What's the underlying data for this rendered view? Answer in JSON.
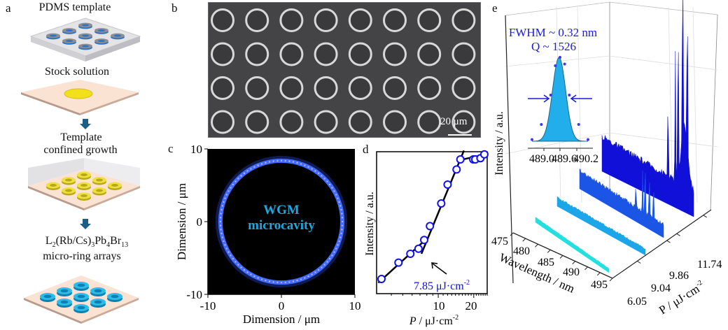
{
  "panel_a": {
    "letter": "a",
    "steps": [
      {
        "label": "PDMS template"
      },
      {
        "label": "Stock solution"
      },
      {
        "label_line1": "Template",
        "label_line2": "confined growth"
      },
      {
        "label_formula_parts": [
          "L",
          "2",
          "(Rb/Cs)",
          "3",
          "Pb",
          "4",
          "Br",
          "13"
        ],
        "label_line2": "micro-ring arrays"
      }
    ],
    "colors": {
      "pdms": "#d9d9dc",
      "substrate": "#f8d9c8",
      "solution": "#f2e01b",
      "growth_ring": "#e8d83a",
      "final_ring": "#1fb6e0",
      "arrow": "#1b5f86"
    }
  },
  "panel_b": {
    "letter": "b",
    "rows": 4,
    "cols": 8,
    "scale_bar": "20 μm"
  },
  "panel_c": {
    "letter": "c",
    "overlay_line1": "WGM",
    "overlay_line2": "microcavity",
    "xlabel": "Dimension / μm",
    "ylabel": "Dimension / μm",
    "xticks": [
      "-10",
      "0",
      "10"
    ],
    "yticks": [
      "10",
      "0",
      "-10"
    ],
    "xlim": [
      -10,
      10
    ],
    "ylim": [
      -10,
      10
    ],
    "ring_radius": 8.3,
    "colors": {
      "ring": "#3f6dff",
      "text": "#19a9e0"
    }
  },
  "panel_d": {
    "letter": "d",
    "xlabel_italic": "P",
    "xlabel_rest": " / μJ·cm",
    "xlabel_sup": "-2",
    "ylabel": "Intensity / a.u.",
    "xticks": [
      "10",
      "20"
    ],
    "annotation": "7.85 μJ·cm",
    "annotation_sup": "-2",
    "threshold": 7.85
  },
  "panel_e": {
    "letter": "e",
    "ylabel": "Intensity / a.u.",
    "xlabel": "Wavelength / nm",
    "zlabel": "P / μJ·cm",
    "zlabel_sup": "-2",
    "wavelength_ticks": [
      "475",
      "480",
      "485",
      "490",
      "495"
    ],
    "power_ticks": [
      "6.05",
      "9.04",
      "9.86",
      "11.74"
    ],
    "inset": {
      "fwhm_text": "FWHM ~ 0.32 nm",
      "q_text": "Q ~ 1526",
      "xticks": [
        "489.0",
        "489.6",
        "490.2"
      ]
    }
  },
  "chart_data": [
    {
      "type": "scatter",
      "title": "d",
      "xlabel": "P / μJ·cm-2",
      "ylabel": "Intensity / a.u.",
      "xscale": "log",
      "xlim": [
        3,
        26
      ],
      "x": [
        3.3,
        4.6,
        5.8,
        6.8,
        7.6,
        8.5,
        10.6,
        12.0,
        14.3,
        15.4,
        19.8,
        20.6,
        22.8,
        24.6
      ],
      "y": [
        0.05,
        0.18,
        0.25,
        0.29,
        0.36,
        0.47,
        0.65,
        0.8,
        0.92,
        1.0,
        1.0,
        1.0,
        1.01,
        1.04
      ],
      "threshold_annotation": "7.85 μJ·cm-2"
    },
    {
      "type": "area",
      "title": "e inset",
      "x": [
        489.0,
        489.2,
        489.4,
        489.5,
        489.6,
        489.7,
        489.8,
        490.0,
        490.2
      ],
      "y": [
        0.02,
        0.2,
        0.55,
        0.9,
        1.0,
        0.92,
        0.55,
        0.2,
        0.02
      ],
      "xticks": [
        "489.0",
        "489.6",
        "490.2"
      ],
      "annotation": [
        "FWHM ~ 0.32 nm",
        "Q ~ 1526"
      ]
    },
    {
      "type": "line",
      "title": "e",
      "xlabel": "Wavelength / nm",
      "ylabel": "Intensity / a.u.",
      "zlabel": "P / μJ·cm-2",
      "xlim": [
        475,
        495
      ],
      "series": [
        {
          "name": "6.05",
          "color": "#22e0e0",
          "peak": 0.1
        },
        {
          "name": "9.04",
          "color": "#1aa6e8",
          "peak": 0.25
        },
        {
          "name": "9.86",
          "color": "#1a55e6",
          "peak": 0.55
        },
        {
          "name": "11.74",
          "color": "#1010d8",
          "peak": 1.0
        }
      ]
    }
  ]
}
